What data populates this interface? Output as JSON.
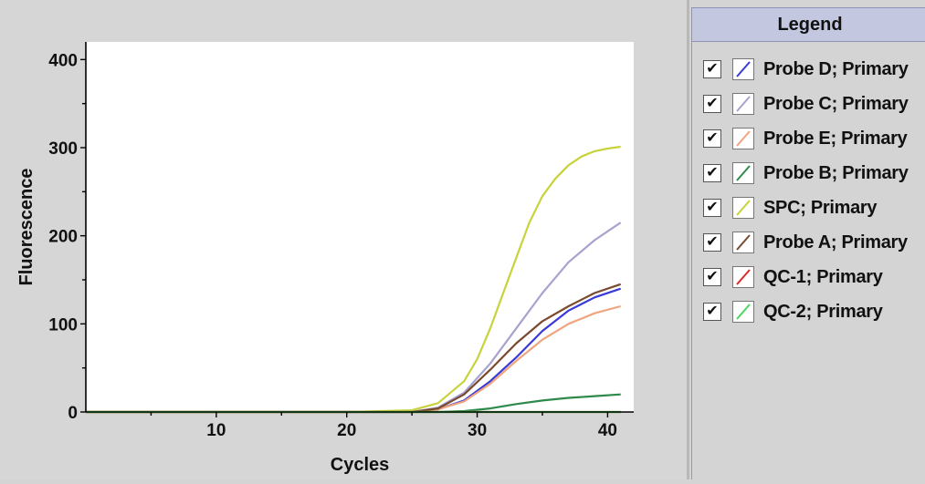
{
  "chart_data": {
    "type": "line",
    "title": "",
    "xlabel": "Cycles",
    "ylabel": "Fluorescence",
    "xlim": [
      0,
      42
    ],
    "ylim": [
      0,
      420
    ],
    "xticks": [
      10,
      20,
      30,
      40
    ],
    "yticks": [
      0,
      100,
      200,
      300,
      400
    ],
    "grid": false,
    "legend_position": "right",
    "series": [
      {
        "name": "Probe D; Primary",
        "color": "#3a3ad8",
        "x": [
          0,
          5,
          10,
          15,
          20,
          25,
          27,
          29,
          31,
          33,
          35,
          37,
          39,
          41
        ],
        "values": [
          0,
          0,
          0,
          0,
          0,
          0,
          3,
          13,
          35,
          62,
          92,
          115,
          130,
          140
        ]
      },
      {
        "name": "Probe C; Primary",
        "color": "#a8a2d0",
        "x": [
          0,
          5,
          10,
          15,
          20,
          25,
          27,
          29,
          31,
          33,
          35,
          37,
          39,
          41
        ],
        "values": [
          0,
          0,
          0,
          0,
          0,
          0,
          5,
          22,
          55,
          95,
          135,
          170,
          195,
          215
        ]
      },
      {
        "name": "Probe E; Primary",
        "color": "#f0a57e",
        "x": [
          0,
          5,
          10,
          15,
          20,
          25,
          27,
          29,
          31,
          33,
          35,
          37,
          39,
          41
        ],
        "values": [
          0,
          0,
          0,
          0,
          0,
          0,
          3,
          12,
          32,
          58,
          82,
          100,
          112,
          120
        ]
      },
      {
        "name": "Probe B; Primary",
        "color": "#2e8a4a",
        "x": [
          0,
          5,
          10,
          15,
          20,
          25,
          27,
          29,
          31,
          33,
          35,
          37,
          39,
          41
        ],
        "values": [
          0,
          0,
          0,
          0,
          0,
          0,
          0,
          1,
          4,
          9,
          13,
          16,
          18,
          20
        ]
      },
      {
        "name": "SPC; Primary",
        "color": "#c8d23a",
        "x": [
          0,
          5,
          10,
          15,
          20,
          25,
          27,
          29,
          30,
          31,
          32,
          33,
          34,
          35,
          36,
          37,
          38,
          39,
          40,
          41
        ],
        "values": [
          0,
          0,
          0,
          0,
          0,
          2,
          10,
          35,
          60,
          95,
          135,
          175,
          215,
          245,
          265,
          280,
          290,
          296,
          299,
          301
        ]
      },
      {
        "name": "Probe A; Primary",
        "color": "#7a4a2e",
        "x": [
          0,
          5,
          10,
          15,
          20,
          25,
          27,
          29,
          31,
          33,
          35,
          37,
          39,
          41
        ],
        "values": [
          0,
          0,
          0,
          0,
          0,
          0,
          4,
          20,
          48,
          78,
          103,
          120,
          135,
          145
        ]
      },
      {
        "name": "QC-1; Primary",
        "color": "#e02a2a",
        "x": [
          0,
          41
        ],
        "values": [
          0,
          0
        ]
      },
      {
        "name": "QC-2; Primary",
        "color": "#4ad860",
        "x": [
          0,
          41
        ],
        "values": [
          0,
          0
        ]
      }
    ]
  },
  "legend": {
    "title": "Legend",
    "check_glyph": "✔"
  }
}
